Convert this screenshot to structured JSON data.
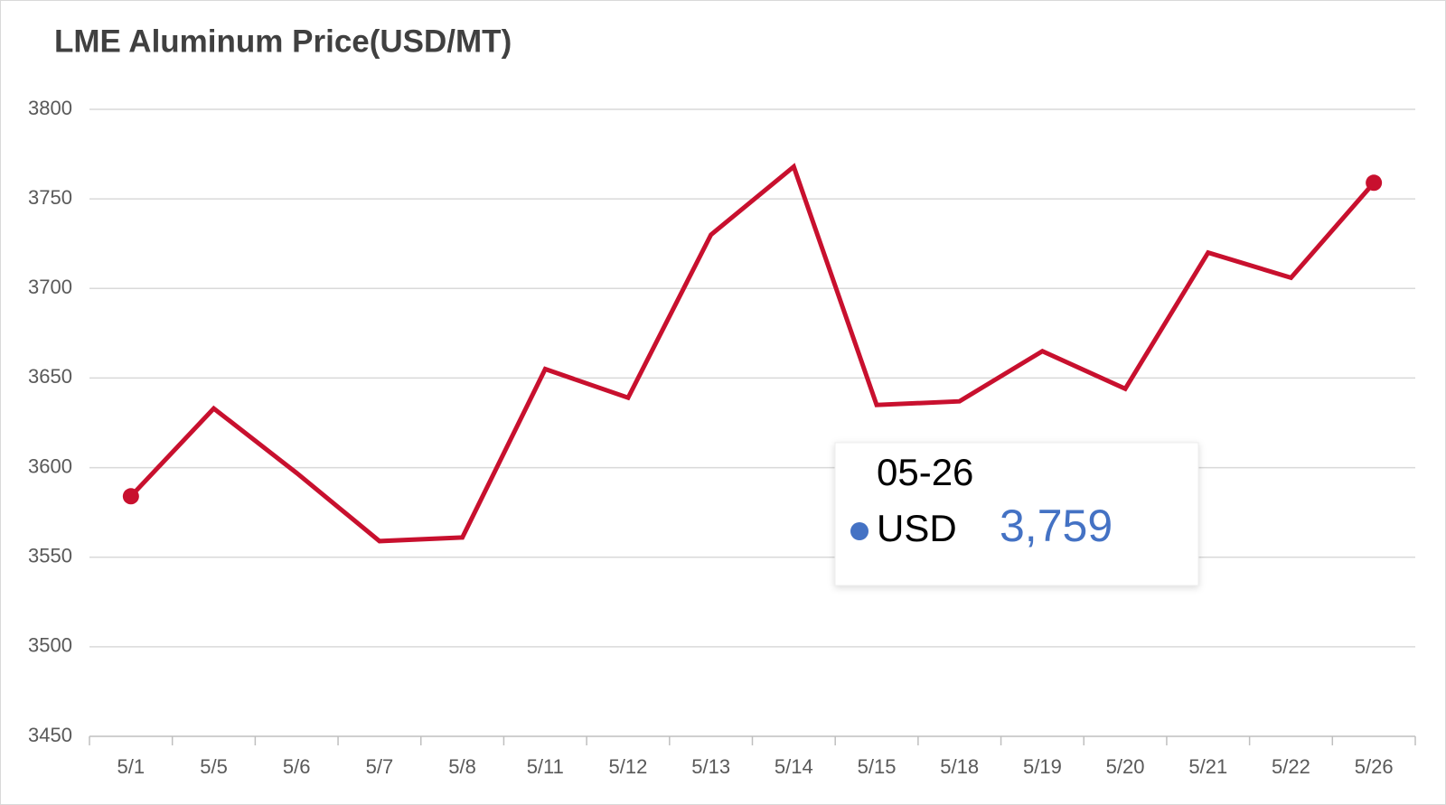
{
  "chart_data": {
    "type": "line",
    "title": "LME Aluminum Price(USD/MT)",
    "categories": [
      "5/1",
      "5/5",
      "5/6",
      "5/7",
      "5/8",
      "5/11",
      "5/12",
      "5/13",
      "5/14",
      "5/15",
      "5/18",
      "5/19",
      "5/20",
      "5/21",
      "5/22",
      "5/26"
    ],
    "series": [
      {
        "name": "USD",
        "color": "#c8102e",
        "values": [
          3584,
          3633,
          3597,
          3559,
          3561,
          3655,
          3639,
          3730,
          3768,
          3635,
          3637,
          3665,
          3644,
          3720,
          3706,
          3759
        ]
      }
    ],
    "ylim": [
      3450,
      3800
    ],
    "yticks": [
      3450,
      3500,
      3550,
      3600,
      3650,
      3700,
      3750,
      3800
    ],
    "grid": true,
    "tooltip": {
      "title": "05-26",
      "value_label": "3,759"
    }
  }
}
